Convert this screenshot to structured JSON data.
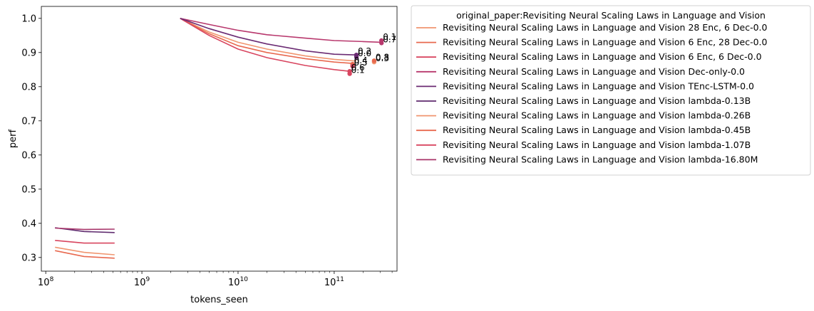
{
  "chart_data": {
    "type": "line",
    "xlabel": "tokens_seen",
    "ylabel": "perf",
    "xscale": "log",
    "xlim": [
      90000000,
      450000000000
    ],
    "ylim": [
      0.26,
      1.035
    ],
    "x_tick_labels": [
      "10^8",
      "10^9",
      "10^10",
      "10^11"
    ],
    "y_tick_labels": [
      "0.3",
      "0.4",
      "0.5",
      "0.6",
      "0.7",
      "0.8",
      "0.9",
      "1.0"
    ],
    "grid": false,
    "legend_position": "outside-right",
    "legend_title": "original_paper:Revisiting Neural Scaling Laws in Language and Vision",
    "series": [
      {
        "name": "Revisiting Neural Scaling Laws in Language and Vision 28 Enc, 6 Dec-0.0",
        "color": "#f0956f",
        "x": [
          2500000000,
          5000000000,
          10000000000,
          20000000000,
          50000000000,
          100000000000,
          170000000000
        ],
        "y": [
          1.0,
          0.96,
          0.93,
          0.91,
          0.89,
          0.88,
          0.875
        ]
      },
      {
        "name": "Revisiting Neural Scaling Laws in Language and Vision 6 Enc, 28 Dec-0.0",
        "color": "#e8694f",
        "x": [
          2500000000,
          5000000000,
          10000000000,
          20000000000,
          50000000000,
          100000000000,
          160000000000
        ],
        "y": [
          1.0,
          0.955,
          0.92,
          0.9,
          0.882,
          0.872,
          0.868
        ]
      },
      {
        "name": "Revisiting Neural Scaling Laws in Language and Vision 6 Enc, 6 Dec-0.0",
        "color": "#d8455f",
        "x": [
          2500000000,
          5000000000,
          10000000000,
          20000000000,
          50000000000,
          100000000000,
          145000000000
        ],
        "y": [
          1.0,
          0.95,
          0.91,
          0.885,
          0.862,
          0.85,
          0.845
        ]
      },
      {
        "name": "Revisiting Neural Scaling Laws in Language and Vision Dec-only-0.0",
        "color": "#b8386d",
        "x": [
          2500000000,
          5000000000,
          10000000000,
          20000000000,
          50000000000,
          100000000000,
          200000000000,
          310000000000
        ],
        "y": [
          1.0,
          0.982,
          0.965,
          0.952,
          0.942,
          0.935,
          0.932,
          0.93
        ]
      },
      {
        "name": "Revisiting Neural Scaling Laws in Language and Vision TEnc-LSTM-0.0",
        "color": "#6b2b73",
        "x": [
          2500000000,
          5000000000,
          10000000000,
          20000000000,
          50000000000,
          100000000000,
          170000000000
        ],
        "y": [
          1.0,
          0.97,
          0.945,
          0.925,
          0.905,
          0.895,
          0.893
        ]
      },
      {
        "name": "Revisiting Neural Scaling Laws in Language and Vision lambda-0.13B",
        "color": "#5e2a6e",
        "x": [
          125000000,
          250000000,
          520000000
        ],
        "y": [
          0.387,
          0.376,
          0.373
        ]
      },
      {
        "name": "Revisiting Neural Scaling Laws in Language and Vision lambda-0.26B",
        "color": "#f0956f",
        "x": [
          125000000,
          250000000,
          520000000
        ],
        "y": [
          0.33,
          0.315,
          0.308
        ]
      },
      {
        "name": "Revisiting Neural Scaling Laws in Language and Vision lambda-0.45B",
        "color": "#e8694f",
        "x": [
          125000000,
          250000000,
          520000000
        ],
        "y": [
          0.32,
          0.303,
          0.298
        ]
      },
      {
        "name": "Revisiting Neural Scaling Laws in Language and Vision lambda-1.07B",
        "color": "#d8455f",
        "x": [
          125000000,
          250000000,
          520000000
        ],
        "y": [
          0.35,
          0.342,
          0.342
        ]
      },
      {
        "name": "Revisiting Neural Scaling Laws in Language and Vision lambda-16.80M",
        "color": "#a8356a",
        "x": [
          125000000,
          250000000,
          520000000
        ],
        "y": [
          0.386,
          0.382,
          0.383
        ]
      }
    ],
    "markers": [
      {
        "x": 310000000000,
        "y": 0.928,
        "color": "#b8386d",
        "label": "0.7"
      },
      {
        "x": 310000000000,
        "y": 0.935,
        "color": "#b8386d",
        "label": "0.1"
      },
      {
        "x": 170000000000,
        "y": 0.893,
        "color": "#6b2b73",
        "label": "0.2"
      },
      {
        "x": 170000000000,
        "y": 0.887,
        "color": "#6b2b73",
        "label": "0.0"
      },
      {
        "x": 260000000000,
        "y": 0.872,
        "color": "#f0956f",
        "label": "0.3"
      },
      {
        "x": 260000000000,
        "y": 0.876,
        "color": "#e8694f",
        "label": "0.8"
      },
      {
        "x": 155000000000,
        "y": 0.866,
        "color": "#e8694f",
        "label": "0.4"
      },
      {
        "x": 155000000000,
        "y": 0.86,
        "color": "#d8455f",
        "label": "0.5"
      },
      {
        "x": 145000000000,
        "y": 0.845,
        "color": "#d8455f",
        "label": "0.6"
      },
      {
        "x": 145000000000,
        "y": 0.838,
        "color": "#d8455f",
        "label": "0.1"
      }
    ]
  }
}
